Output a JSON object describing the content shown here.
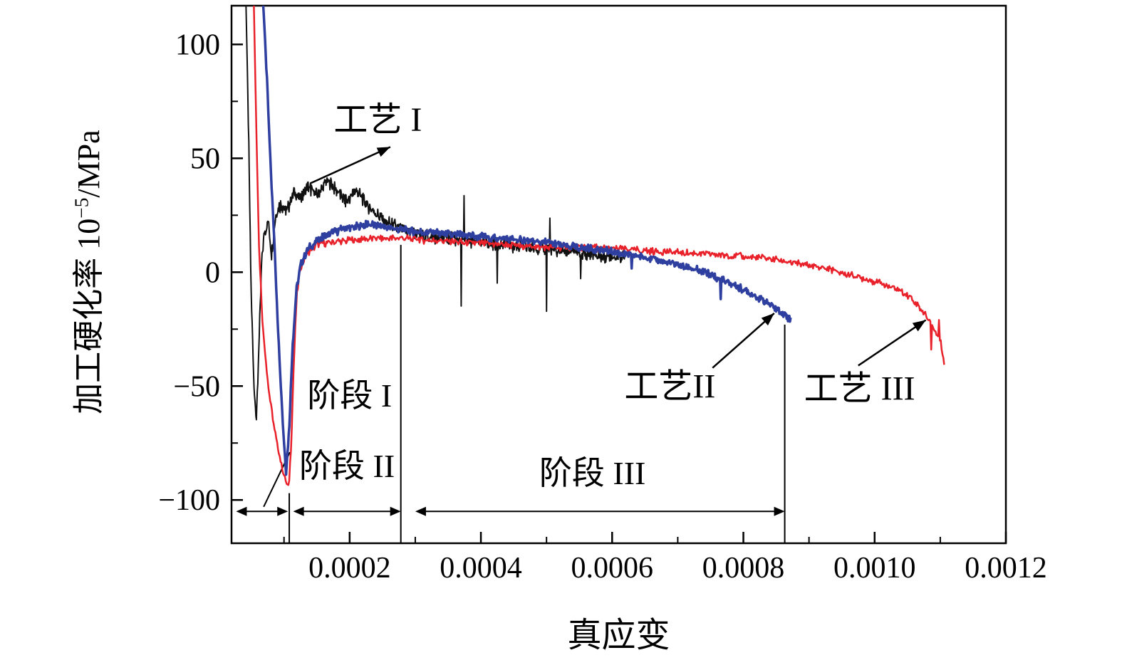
{
  "figure": {
    "ylabel_prefix": "加工硬化率 10",
    "ylabel_sup": "−5",
    "ylabel_suffix": "/MPa"
  },
  "chart_data": {
    "type": "line",
    "title": "",
    "xlabel": "真应变",
    "ylabel": "加工硬化率 10⁻⁵/MPa",
    "xlim": [
      2e-05,
      0.0012
    ],
    "ylim": [
      -119,
      117
    ],
    "xticks": [
      0.0002,
      0.0004,
      0.0006,
      0.0008,
      0.001,
      0.0012
    ],
    "xtick_labels": [
      "0.0002",
      "0.0004",
      "0.0006",
      "0.0008",
      "0.0010",
      "0.0012"
    ],
    "yticks": [
      100,
      50,
      0,
      -50,
      -100
    ],
    "ytick_labels": [
      "100",
      "50",
      "0",
      "−50",
      "−100"
    ],
    "x_minor_step": 0.0001,
    "y_minor_step": 25,
    "grid": false,
    "legend_position": "none (arrow annotations on plot)",
    "series": [
      {
        "key": "process-1",
        "name": "工艺 I",
        "color": "#111111",
        "stroke_width": 2,
        "noise_amp": 3.5,
        "anchors": [
          [
            4.2e-05,
            119
          ],
          [
            4.6e-05,
            60
          ],
          [
            5e-05,
            -10
          ],
          [
            5.4e-05,
            -48
          ],
          [
            5.8e-05,
            -65
          ],
          [
            6.2e-05,
            -30
          ],
          [
            6.6e-05,
            5
          ],
          [
            7e-05,
            18
          ],
          [
            7.6e-05,
            22
          ],
          [
            8.1e-05,
            8
          ],
          [
            8.7e-05,
            25
          ],
          [
            9.5e-05,
            30
          ],
          [
            0.000105,
            27
          ],
          [
            0.000115,
            35
          ],
          [
            0.000125,
            32
          ],
          [
            0.000135,
            38
          ],
          [
            0.00015,
            34
          ],
          [
            0.000165,
            40
          ],
          [
            0.00018,
            36
          ],
          [
            0.000195,
            31
          ],
          [
            0.00021,
            36
          ],
          [
            0.000225,
            30
          ],
          [
            0.00024,
            26
          ],
          [
            0.000255,
            22
          ],
          [
            0.00027,
            20
          ],
          [
            0.000285,
            18
          ],
          [
            0.0003,
            17
          ],
          [
            0.00032,
            16
          ],
          [
            0.00035,
            15
          ],
          [
            0.00038,
            14
          ],
          [
            0.00041,
            13
          ],
          [
            0.00044,
            12
          ],
          [
            0.00047,
            11
          ],
          [
            0.0005,
            10
          ],
          [
            0.00053,
            9
          ],
          [
            0.00056,
            8
          ],
          [
            0.00059,
            7
          ],
          [
            0.00062,
            7
          ]
        ],
        "spikes": [
          {
            "x": 0.00037,
            "dy": -32
          },
          {
            "x": 0.000374,
            "dy": 22
          },
          {
            "x": 0.000425,
            "dy": -18
          },
          {
            "x": 0.0005,
            "dy": -26
          },
          {
            "x": 0.000505,
            "dy": 14
          },
          {
            "x": 0.000552,
            "dy": -12
          }
        ]
      },
      {
        "key": "process-2",
        "name": "工艺II",
        "color": "#2f3f9f",
        "stroke_width": 3.5,
        "noise_amp": 2,
        "anchors": [
          [
            6.8e-05,
            119
          ],
          [
            7.4e-05,
            85
          ],
          [
            8e-05,
            45
          ],
          [
            8.6e-05,
            8
          ],
          [
            9.2e-05,
            -32
          ],
          [
            9.8e-05,
            -65
          ],
          [
            0.000103,
            -88
          ],
          [
            0.000108,
            -68
          ],
          [
            0.000113,
            -32
          ],
          [
            0.000119,
            -8
          ],
          [
            0.000126,
            4
          ],
          [
            0.000136,
            10
          ],
          [
            0.00015,
            14
          ],
          [
            0.00017,
            17
          ],
          [
            0.00019,
            19
          ],
          [
            0.00021,
            20
          ],
          [
            0.00023,
            21
          ],
          [
            0.00025,
            20
          ],
          [
            0.00027,
            19
          ],
          [
            0.0003,
            18
          ],
          [
            0.00034,
            17
          ],
          [
            0.00038,
            16
          ],
          [
            0.00042,
            15
          ],
          [
            0.00046,
            14
          ],
          [
            0.0005,
            13
          ],
          [
            0.00054,
            11
          ],
          [
            0.00058,
            10
          ],
          [
            0.00062,
            8
          ],
          [
            0.00066,
            6
          ],
          [
            0.0007,
            3
          ],
          [
            0.00074,
            0
          ],
          [
            0.00078,
            -5
          ],
          [
            0.00081,
            -9
          ],
          [
            0.00084,
            -14
          ],
          [
            0.00086,
            -18
          ],
          [
            0.000872,
            -21
          ]
        ],
        "spikes": [
          {
            "x": 0.000765,
            "dy": -9
          },
          {
            "x": 0.00063,
            "dy": -7
          }
        ]
      },
      {
        "key": "process-3",
        "name": "工艺 III",
        "color": "#e8212a",
        "stroke_width": 2.5,
        "noise_amp": 1.8,
        "anchors": [
          [
            5.4e-05,
            119
          ],
          [
            5.8e-05,
            60
          ],
          [
            6.2e-05,
            10
          ],
          [
            6.8e-05,
            -25
          ],
          [
            7.6e-05,
            -50
          ],
          [
            8.6e-05,
            -70
          ],
          [
            9.6e-05,
            -85
          ],
          [
            0.000103,
            -92
          ],
          [
            0.000107,
            -95
          ],
          [
            0.000111,
            -75
          ],
          [
            0.000115,
            -40
          ],
          [
            0.000119,
            -12
          ],
          [
            0.000125,
            2
          ],
          [
            0.000135,
            8
          ],
          [
            0.00015,
            12
          ],
          [
            0.00017,
            13
          ],
          [
            0.0002,
            14
          ],
          [
            0.00024,
            15
          ],
          [
            0.00028,
            15
          ],
          [
            0.00032,
            14
          ],
          [
            0.00038,
            13
          ],
          [
            0.00044,
            12
          ],
          [
            0.0005,
            11
          ],
          [
            0.00056,
            11
          ],
          [
            0.00062,
            10
          ],
          [
            0.00068,
            9
          ],
          [
            0.00074,
            8
          ],
          [
            0.0008,
            7
          ],
          [
            0.00084,
            6
          ],
          [
            0.00088,
            4
          ],
          [
            0.00092,
            2
          ],
          [
            0.00096,
            -1
          ],
          [
            0.001,
            -4
          ],
          [
            0.00103,
            -7
          ],
          [
            0.00105,
            -10
          ],
          [
            0.001065,
            -14
          ],
          [
            0.001075,
            -18
          ],
          [
            0.001085,
            -22
          ],
          [
            0.001092,
            -26
          ],
          [
            0.0011,
            -30
          ],
          [
            0.001106,
            -40
          ]
        ],
        "spikes": [
          {
            "x": 0.001086,
            "dy": -10
          },
          {
            "x": 0.001098,
            "dy": 8
          }
        ]
      }
    ],
    "annotations": [
      {
        "label": "工艺 I",
        "x": 0.000243,
        "y": 67,
        "arrow_from": [
          0.00014,
          39
        ],
        "arrow_to": [
          0.000262,
          55
        ]
      },
      {
        "label": "工艺II",
        "x": 0.000688,
        "y": -50,
        "arrow_from": [
          0.000753,
          -42
        ],
        "arrow_to": [
          0.000847,
          -18
        ]
      },
      {
        "label": "工艺 III",
        "x": 0.000977,
        "y": -51,
        "arrow_from": [
          0.000975,
          -41
        ],
        "arrow_to": [
          0.001078,
          -21
        ]
      }
    ],
    "stage_labels": [
      {
        "label": "阶段 I",
        "x": 0.0002,
        "y": -54
      },
      {
        "label": "阶段 II",
        "x": 0.000196,
        "y": -85
      },
      {
        "label": "阶段 III",
        "x": 0.00057,
        "y": -88
      }
    ],
    "stage_arrows": [
      {
        "x1": 2.7e-05,
        "x2": 0.000106,
        "y": -105
      },
      {
        "x1": 0.000114,
        "x2": 0.000278,
        "y": -105
      },
      {
        "x1": 0.0003,
        "x2": 0.000863,
        "y": -105
      }
    ],
    "boundary_lines": [
      {
        "x": 0.000108,
        "y1": -97,
        "y2": -119
      },
      {
        "x": 0.000278,
        "y1": 12,
        "y2": -119
      },
      {
        "x": 0.000863,
        "y1": -23,
        "y2": -119
      }
    ],
    "leader_line": {
      "x1": 6.9e-05,
      "y1": -103,
      "x2": 0.000109,
      "y2": -79
    }
  }
}
